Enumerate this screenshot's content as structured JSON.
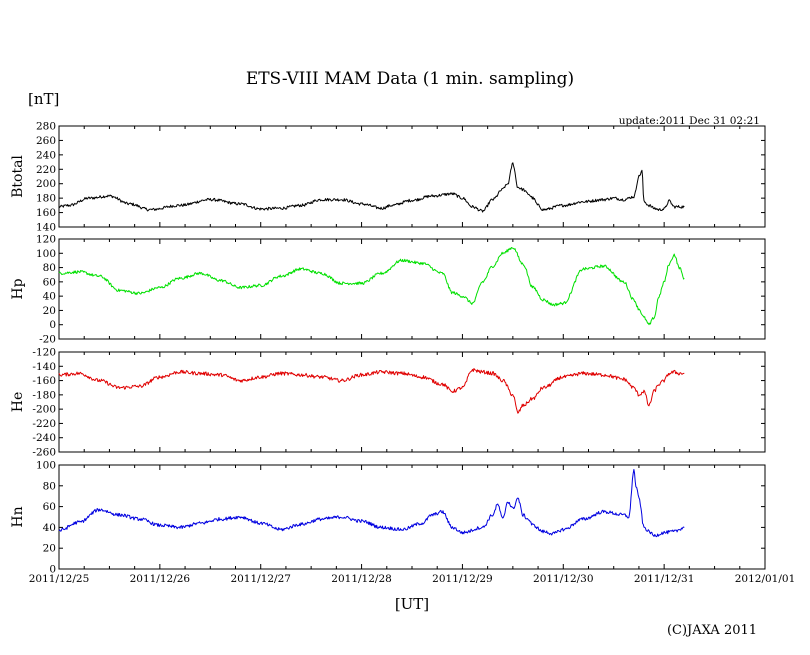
{
  "chart_data": {
    "type": "line",
    "title": "ETS-VIII MAM Data (1 min. sampling)",
    "unit_label": "[nT]",
    "update_text": "update:2011 Dec 31 02:21",
    "xlabel": "[UT]",
    "credit": "(C)JAXA 2011",
    "x_ticks": [
      "2011/12/25",
      "2011/12/26",
      "2011/12/27",
      "2011/12/28",
      "2011/12/29",
      "2011/12/30",
      "2011/12/31",
      "2012/01/01"
    ],
    "xlim": [
      0,
      7
    ],
    "x_unit": "days since 2011/12/25 00:00 UT",
    "panels": [
      {
        "name": "Btotal",
        "ylabel": "Btotal",
        "color": "#000000",
        "ylim": [
          140,
          280
        ],
        "yticks": [
          140,
          160,
          180,
          200,
          220,
          240,
          260,
          280
        ],
        "noise": 2,
        "x": [
          0,
          0.1,
          0.3,
          0.5,
          0.7,
          0.9,
          1.2,
          1.5,
          1.8,
          2.0,
          2.2,
          2.4,
          2.6,
          2.8,
          3.0,
          3.2,
          3.3,
          3.5,
          3.7,
          3.9,
          4.0,
          4.1,
          4.2,
          4.3,
          4.4,
          4.42,
          4.45,
          4.5,
          4.55,
          4.6,
          4.65,
          4.7,
          4.75,
          4.8,
          5.0,
          5.2,
          5.4,
          5.5,
          5.6,
          5.7,
          5.75,
          5.78,
          5.8,
          5.85,
          5.9,
          5.95,
          6.0,
          6.05,
          6.1,
          6.15,
          6.2
        ],
        "y": [
          168,
          170,
          180,
          183,
          172,
          164,
          170,
          178,
          172,
          165,
          166,
          170,
          178,
          178,
          172,
          166,
          170,
          177,
          183,
          186,
          180,
          168,
          162,
          178,
          192,
          196,
          200,
          228,
          195,
          192,
          186,
          180,
          170,
          164,
          170,
          175,
          178,
          180,
          178,
          182,
          210,
          218,
          175,
          170,
          166,
          164,
          165,
          176,
          168,
          168,
          168
        ]
      },
      {
        "name": "Hp",
        "ylabel": "Hp",
        "color": "#00e000",
        "ylim": [
          -20,
          120
        ],
        "yticks": [
          -20,
          0,
          20,
          40,
          60,
          80,
          100,
          120
        ],
        "noise": 2,
        "x": [
          0,
          0.2,
          0.4,
          0.6,
          0.8,
          1.0,
          1.2,
          1.4,
          1.6,
          1.8,
          2.0,
          2.2,
          2.4,
          2.6,
          2.8,
          3.0,
          3.2,
          3.4,
          3.6,
          3.8,
          3.9,
          4.0,
          4.1,
          4.2,
          4.3,
          4.4,
          4.5,
          4.6,
          4.7,
          4.8,
          4.9,
          5.0,
          5.2,
          5.4,
          5.6,
          5.7,
          5.75,
          5.8,
          5.85,
          5.9,
          5.95,
          6.0,
          6.05,
          6.1,
          6.15,
          6.2
        ],
        "y": [
          72,
          74,
          68,
          48,
          44,
          52,
          65,
          72,
          62,
          52,
          55,
          68,
          78,
          72,
          58,
          58,
          72,
          90,
          86,
          72,
          45,
          40,
          30,
          60,
          82,
          100,
          108,
          85,
          52,
          35,
          28,
          30,
          78,
          82,
          60,
          35,
          22,
          10,
          0,
          10,
          40,
          60,
          85,
          98,
          80,
          65
        ]
      },
      {
        "name": "He",
        "ylabel": "He",
        "color": "#e00000",
        "ylim": [
          -260,
          -120
        ],
        "yticks": [
          -260,
          -240,
          -220,
          -200,
          -180,
          -160,
          -140,
          -120
        ],
        "noise": 2.5,
        "x": [
          0,
          0.2,
          0.4,
          0.6,
          0.8,
          1.0,
          1.2,
          1.4,
          1.6,
          1.8,
          2.0,
          2.2,
          2.4,
          2.6,
          2.8,
          3.0,
          3.2,
          3.4,
          3.6,
          3.8,
          3.9,
          4.0,
          4.1,
          4.2,
          4.3,
          4.4,
          4.5,
          4.55,
          4.6,
          4.7,
          4.8,
          5.0,
          5.2,
          5.4,
          5.6,
          5.7,
          5.75,
          5.8,
          5.85,
          5.9,
          5.95,
          6.0,
          6.05,
          6.1,
          6.15,
          6.2
        ],
        "y": [
          -152,
          -150,
          -160,
          -170,
          -168,
          -155,
          -148,
          -150,
          -152,
          -160,
          -155,
          -150,
          -152,
          -155,
          -160,
          -152,
          -148,
          -150,
          -155,
          -165,
          -175,
          -170,
          -145,
          -148,
          -150,
          -160,
          -180,
          -205,
          -195,
          -185,
          -170,
          -155,
          -150,
          -152,
          -158,
          -170,
          -180,
          -175,
          -195,
          -175,
          -165,
          -160,
          -150,
          -148,
          -150,
          -150
        ]
      },
      {
        "name": "Hn",
        "ylabel": "Hn",
        "color": "#0000e0",
        "ylim": [
          0,
          100
        ],
        "yticks": [
          0,
          20,
          40,
          60,
          80,
          100
        ],
        "noise": 1.6,
        "x": [
          0,
          0.2,
          0.4,
          0.6,
          0.8,
          1.0,
          1.2,
          1.4,
          1.6,
          1.8,
          2.0,
          2.2,
          2.4,
          2.6,
          2.8,
          3.0,
          3.2,
          3.4,
          3.6,
          3.7,
          3.8,
          3.9,
          4.0,
          4.2,
          4.3,
          4.35,
          4.4,
          4.45,
          4.5,
          4.55,
          4.6,
          4.65,
          4.7,
          4.8,
          4.9,
          5.0,
          5.2,
          5.4,
          5.6,
          5.65,
          5.7,
          5.72,
          5.75,
          5.8,
          5.85,
          5.9,
          6.0,
          6.1,
          6.2
        ],
        "y": [
          37,
          45,
          57,
          52,
          48,
          42,
          40,
          44,
          48,
          50,
          44,
          38,
          43,
          48,
          50,
          46,
          40,
          38,
          44,
          52,
          55,
          40,
          35,
          40,
          52,
          62,
          48,
          65,
          58,
          68,
          52,
          48,
          42,
          36,
          34,
          38,
          48,
          55,
          52,
          50,
          95,
          80,
          68,
          40,
          36,
          32,
          35,
          36,
          40
        ]
      }
    ]
  }
}
